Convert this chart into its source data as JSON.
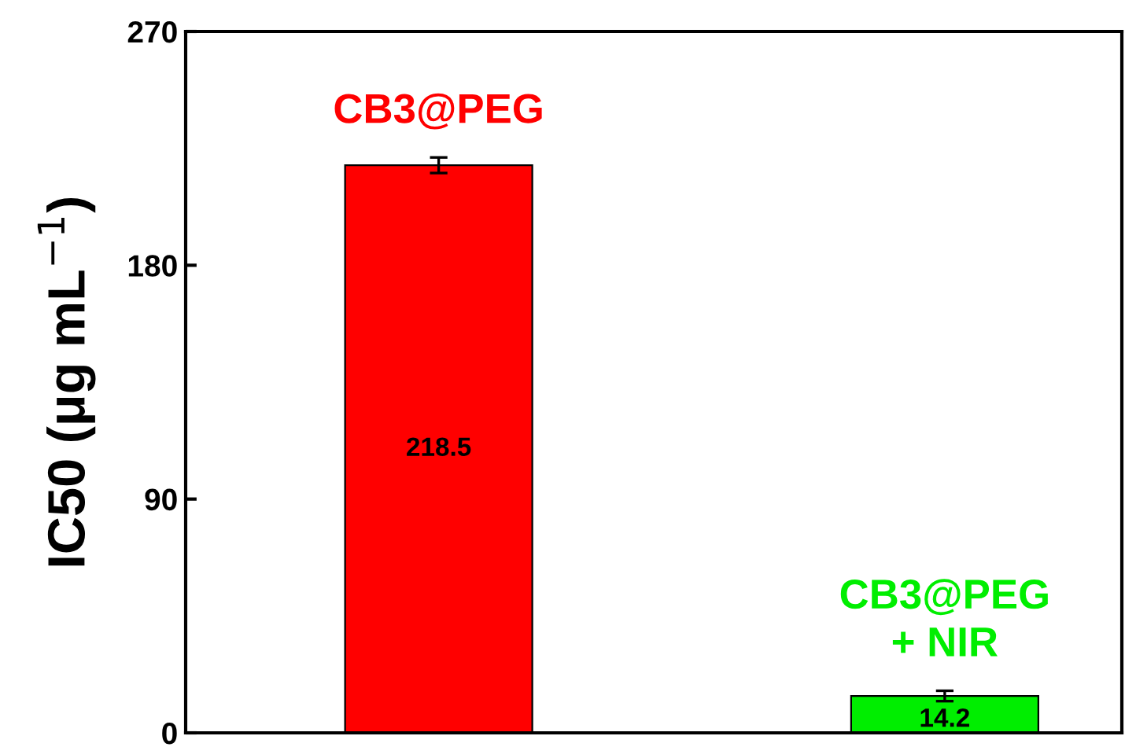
{
  "chart_data": {
    "type": "bar",
    "ylabel": "IC50 (μg mL$^{−1}$)",
    "categories": [
      "CB3@PEG",
      "CB3@PEG\n+ NIR"
    ],
    "values": [
      218.5,
      14.2
    ],
    "colors": [
      "#ff0000",
      "#00ee00"
    ],
    "errors": [
      3,
      2
    ],
    "data_labels": true,
    "ylim": [
      0,
      270
    ],
    "yticks": [
      0,
      90,
      180,
      270
    ],
    "grid": false
  }
}
